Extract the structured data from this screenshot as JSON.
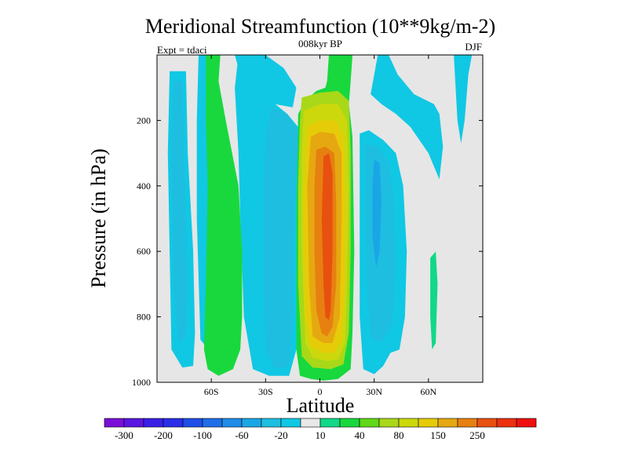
{
  "chart_data": {
    "type": "contour",
    "title": "Meridional Streamfunction (10**9kg/m-2)",
    "subtitle": "008kyr BP",
    "left_label": "Expt = tdaci",
    "right_label": "DJF",
    "xlabel": "Latitude",
    "ylabel": "Pressure (in hPa)",
    "xlim": [
      -90,
      90
    ],
    "ylim": [
      1000,
      0
    ],
    "x_ticks": [
      {
        "value": -60,
        "label": "60S"
      },
      {
        "value": -30,
        "label": "30S"
      },
      {
        "value": 0,
        "label": "0"
      },
      {
        "value": 30,
        "label": "30N"
      },
      {
        "value": 60,
        "label": "60N"
      }
    ],
    "y_ticks": [
      {
        "value": 200,
        "label": "200"
      },
      {
        "value": 400,
        "label": "400"
      },
      {
        "value": 600,
        "label": "600"
      },
      {
        "value": 800,
        "label": "800"
      },
      {
        "value": 1000,
        "label": "1000"
      }
    ],
    "background_color": "#e6e6e6",
    "colorbar": {
      "colors": [
        "#7a10d8",
        "#5a18e0",
        "#3a20e6",
        "#2a2ee8",
        "#1f4fe6",
        "#1f6ee8",
        "#1f8ce8",
        "#1aa6e6",
        "#1ebee0",
        "#10c8e4",
        "#e8e8e8",
        "#12d888",
        "#18d83e",
        "#60d818",
        "#a8d818",
        "#ccd80c",
        "#e6cc08",
        "#e6a810",
        "#e68010",
        "#e85010",
        "#ec3010",
        "#ee1010"
      ],
      "labels": [
        {
          "value": "-300",
          "boundary": 1
        },
        {
          "value": "-200",
          "boundary": 3
        },
        {
          "value": "-100",
          "boundary": 5
        },
        {
          "value": "-60",
          "boundary": 7
        },
        {
          "value": "-20",
          "boundary": 9
        },
        {
          "value": "10",
          "boundary": 11
        },
        {
          "value": "40",
          "boundary": 13
        },
        {
          "value": "80",
          "boundary": 15
        },
        {
          "value": "150",
          "boundary": 17
        },
        {
          "value": "250",
          "boundary": 19
        }
      ]
    },
    "regions": [
      {
        "name": "cell-60s-cyan",
        "color": "#10c8e4",
        "outline": [
          [
            -83,
            50
          ],
          [
            -74,
            50
          ],
          [
            -73,
            300
          ],
          [
            -70,
            600
          ],
          [
            -69,
            850
          ],
          [
            -70,
            950
          ],
          [
            -76,
            955
          ],
          [
            -82,
            900
          ],
          [
            -83,
            600
          ],
          [
            -84,
            300
          ]
        ]
      },
      {
        "name": "cell-60s-blue",
        "color": "#1ebee0",
        "outline": [
          [
            -81,
            80
          ],
          [
            -76,
            80
          ],
          [
            -75,
            300
          ],
          [
            -73,
            700
          ],
          [
            -74,
            860
          ],
          [
            -78,
            880
          ],
          [
            -81,
            700
          ],
          [
            -82,
            300
          ]
        ]
      },
      {
        "name": "cell-midlat-south-cyan-a",
        "color": "#10c8e4",
        "outline": [
          [
            -67,
            0
          ],
          [
            -60,
            0
          ],
          [
            -59,
            300
          ],
          [
            -57,
            700
          ],
          [
            -56,
            900
          ],
          [
            -60,
            910
          ],
          [
            -66,
            870
          ],
          [
            -68,
            500
          ],
          [
            -68,
            200
          ]
        ]
      },
      {
        "name": "cell-midlat-south-cyan-b",
        "color": "#10c8e4",
        "outline": [
          [
            -45,
            0
          ],
          [
            -37,
            0
          ],
          [
            -33,
            60
          ],
          [
            -27,
            140
          ],
          [
            -18,
            180
          ],
          [
            -12,
            220
          ],
          [
            -10,
            600
          ],
          [
            -13,
            900
          ],
          [
            -17,
            980
          ],
          [
            -28,
            980
          ],
          [
            -37,
            960
          ],
          [
            -42,
            800
          ],
          [
            -44,
            500
          ],
          [
            -45,
            300
          ],
          [
            -47,
            100
          ]
        ]
      },
      {
        "name": "cell-midlat-south-green",
        "color": "#18d83e",
        "outline": [
          [
            -63,
            0
          ],
          [
            -55,
            0
          ],
          [
            -56,
            80
          ],
          [
            -52,
            200
          ],
          [
            -45,
            400
          ],
          [
            -43,
            600
          ],
          [
            -43,
            800
          ],
          [
            -44,
            900
          ],
          [
            -48,
            960
          ],
          [
            -56,
            980
          ],
          [
            -62,
            960
          ],
          [
            -64,
            900
          ],
          [
            -63,
            700
          ],
          [
            -62,
            400
          ],
          [
            -63,
            200
          ]
        ]
      },
      {
        "name": "cell-south-subtropical-blue",
        "color": "#1ebee0",
        "outline": [
          [
            -27,
            160
          ],
          [
            -18,
            180
          ],
          [
            -12,
            230
          ],
          [
            -14,
            500
          ],
          [
            -15,
            800
          ],
          [
            -17,
            950
          ],
          [
            -25,
            960
          ],
          [
            -30,
            900
          ],
          [
            -31,
            700
          ],
          [
            -31,
            400
          ],
          [
            -30,
            250
          ]
        ]
      },
      {
        "name": "cell-hadley-south-green",
        "color": "#18d83e",
        "outline": [
          [
            5,
            0
          ],
          [
            18,
            0
          ],
          [
            17,
            80
          ],
          [
            16,
            150
          ],
          [
            18,
            250
          ],
          [
            19,
            600
          ],
          [
            18,
            850
          ],
          [
            17,
            960
          ],
          [
            10,
            990
          ],
          [
            2,
            995
          ],
          [
            -5,
            990
          ],
          [
            -11,
            980
          ],
          [
            -13,
            900
          ],
          [
            -13,
            500
          ],
          [
            -12,
            180
          ],
          [
            -8,
            140
          ],
          [
            -2,
            110
          ],
          [
            3,
            100
          ],
          [
            5,
            60
          ]
        ]
      },
      {
        "name": "cell-hadley-yellowgreen",
        "color": "#a8d818",
        "outline": [
          [
            -10,
            130
          ],
          [
            0,
            115
          ],
          [
            10,
            110
          ],
          [
            16,
            140
          ],
          [
            17,
            300
          ],
          [
            17,
            600
          ],
          [
            16,
            850
          ],
          [
            13,
            945
          ],
          [
            6,
            960
          ],
          [
            -4,
            955
          ],
          [
            -10,
            920
          ],
          [
            -12,
            700
          ],
          [
            -12,
            400
          ],
          [
            -11,
            200
          ]
        ]
      },
      {
        "name": "cell-hadley-yellow",
        "color": "#ccd80c",
        "outline": [
          [
            -9,
            170
          ],
          [
            0,
            150
          ],
          [
            10,
            150
          ],
          [
            15,
            200
          ],
          [
            16,
            400
          ],
          [
            15,
            700
          ],
          [
            14,
            880
          ],
          [
            10,
            930
          ],
          [
            4,
            935
          ],
          [
            -4,
            925
          ],
          [
            -8,
            880
          ],
          [
            -10,
            600
          ],
          [
            -10,
            300
          ]
        ]
      },
      {
        "name": "cell-hadley-gold",
        "color": "#e6cc08",
        "outline": [
          [
            -7,
            220
          ],
          [
            0,
            200
          ],
          [
            9,
            200
          ],
          [
            13,
            250
          ],
          [
            14,
            450
          ],
          [
            14,
            700
          ],
          [
            12,
            870
          ],
          [
            8,
            910
          ],
          [
            2,
            910
          ],
          [
            -5,
            890
          ],
          [
            -8,
            800
          ],
          [
            -9,
            500
          ],
          [
            -8,
            300
          ]
        ]
      },
      {
        "name": "cell-hadley-orange",
        "color": "#e6a810",
        "outline": [
          [
            -5,
            250
          ],
          [
            0,
            235
          ],
          [
            8,
            240
          ],
          [
            12,
            300
          ],
          [
            12,
            500
          ],
          [
            11,
            800
          ],
          [
            7,
            880
          ],
          [
            2,
            880
          ],
          [
            -4,
            860
          ],
          [
            -6,
            700
          ],
          [
            -7,
            400
          ]
        ]
      },
      {
        "name": "cell-hadley-darkorange",
        "color": "#e68010",
        "outline": [
          [
            -2,
            290
          ],
          [
            3,
            280
          ],
          [
            8,
            300
          ],
          [
            9,
            450
          ],
          [
            9,
            700
          ],
          [
            7,
            830
          ],
          [
            4,
            860
          ],
          [
            1,
            850
          ],
          [
            -2,
            780
          ],
          [
            -3,
            600
          ],
          [
            -3,
            400
          ]
        ]
      },
      {
        "name": "cell-hadley-red",
        "color": "#e85010",
        "outline": [
          [
            2,
            310
          ],
          [
            5,
            300
          ],
          [
            7,
            360
          ],
          [
            7,
            600
          ],
          [
            6,
            780
          ],
          [
            5,
            810
          ],
          [
            3,
            800
          ],
          [
            2,
            700
          ],
          [
            1,
            500
          ]
        ]
      },
      {
        "name": "cell-north-blue-outer",
        "color": "#10c8e4",
        "outline": [
          [
            22,
            240
          ],
          [
            27,
            230
          ],
          [
            35,
            260
          ],
          [
            42,
            300
          ],
          [
            46,
            400
          ],
          [
            48,
            600
          ],
          [
            47,
            800
          ],
          [
            44,
            900
          ],
          [
            39,
            910
          ],
          [
            35,
            950
          ],
          [
            30,
            975
          ],
          [
            24,
            960
          ],
          [
            22,
            800
          ],
          [
            22,
            500
          ]
        ]
      },
      {
        "name": "cell-north-blue-inner",
        "color": "#1ebee0",
        "outline": [
          [
            25,
            270
          ],
          [
            32,
            280
          ],
          [
            38,
            330
          ],
          [
            41,
            450
          ],
          [
            42,
            650
          ],
          [
            40,
            820
          ],
          [
            34,
            880
          ],
          [
            28,
            860
          ],
          [
            26,
            700
          ],
          [
            25,
            500
          ]
        ]
      },
      {
        "name": "cell-north-deepblue",
        "color": "#1aa6e6",
        "outline": [
          [
            30,
            320
          ],
          [
            33,
            330
          ],
          [
            34,
            450
          ],
          [
            33,
            600
          ],
          [
            31,
            650
          ],
          [
            29,
            550
          ],
          [
            29,
            400
          ]
        ]
      },
      {
        "name": "cell-north-cap-cyan",
        "color": "#10c8e4",
        "outline": [
          [
            32,
            0
          ],
          [
            38,
            0
          ],
          [
            43,
            60
          ],
          [
            52,
            120
          ],
          [
            63,
            150
          ],
          [
            66,
            180
          ],
          [
            68,
            280
          ],
          [
            66,
            380
          ],
          [
            60,
            300
          ],
          [
            50,
            220
          ],
          [
            42,
            180
          ],
          [
            34,
            150
          ],
          [
            28,
            120
          ]
        ]
      },
      {
        "name": "cell-north-teal-strip",
        "color": "#12d888",
        "outline": [
          [
            61,
            620
          ],
          [
            64,
            600
          ],
          [
            65,
            700
          ],
          [
            64,
            880
          ],
          [
            62,
            900
          ],
          [
            61,
            800
          ]
        ]
      },
      {
        "name": "cell-north-pole-cyan",
        "color": "#10c8e4",
        "outline": [
          [
            74,
            0
          ],
          [
            84,
            0
          ],
          [
            82,
            60
          ],
          [
            80,
            200
          ],
          [
            78,
            270
          ],
          [
            76,
            200
          ],
          [
            75,
            100
          ]
        ]
      },
      {
        "name": "cell-south-top-cyan",
        "color": "#10c8e4",
        "outline": [
          [
            -47,
            0
          ],
          [
            -30,
            0
          ],
          [
            -20,
            40
          ],
          [
            -13,
            100
          ],
          [
            -15,
            160
          ],
          [
            -25,
            150
          ],
          [
            -35,
            100
          ],
          [
            -44,
            60
          ]
        ]
      },
      {
        "name": "cell-top-green-cap",
        "color": "#18d83e",
        "outline": [
          [
            5,
            0
          ],
          [
            18,
            0
          ],
          [
            17,
            70
          ],
          [
            14,
            100
          ],
          [
            7,
            100
          ],
          [
            4,
            80
          ]
        ]
      }
    ]
  }
}
